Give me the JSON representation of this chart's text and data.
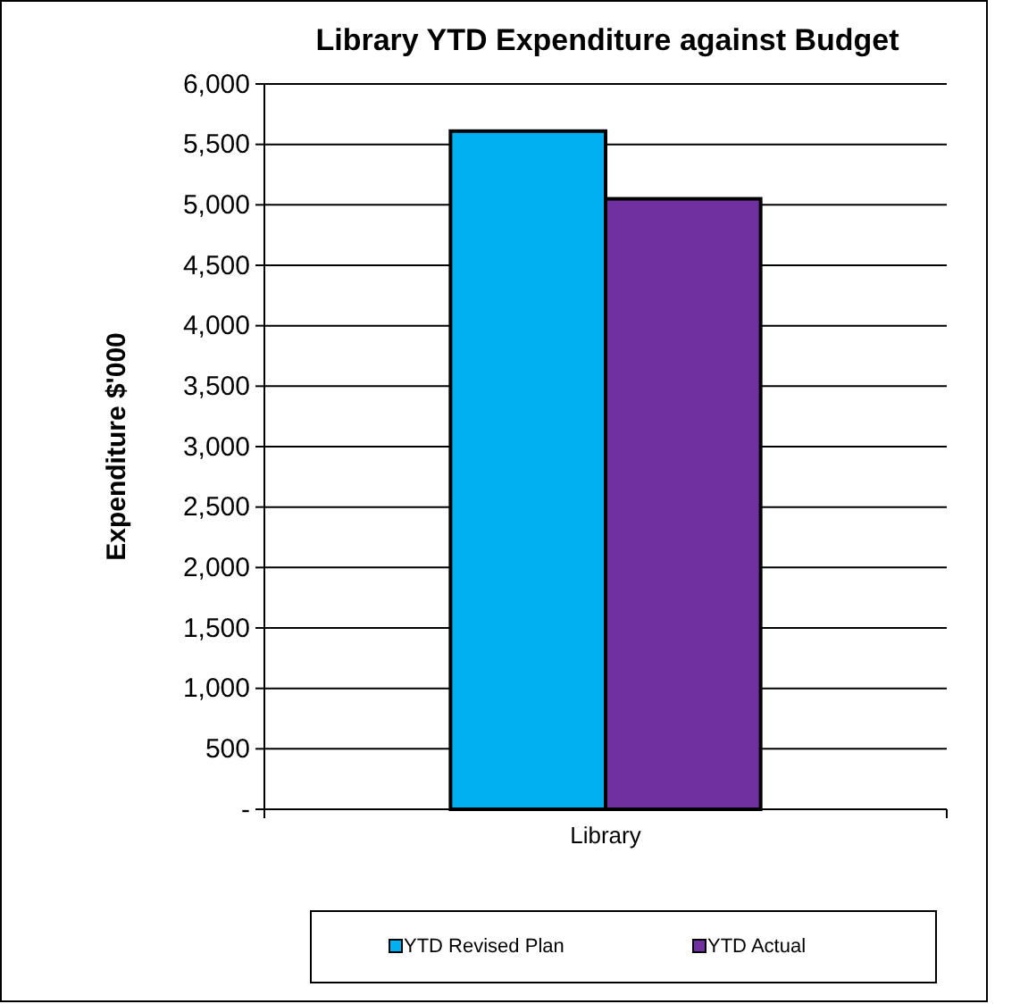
{
  "chart_data": {
    "type": "bar",
    "title": "Library YTD Expenditure against Budget",
    "ylabel": "Expenditure $'000",
    "categories": [
      "Library"
    ],
    "series": [
      {
        "name": "YTD Revised Plan",
        "color": "#00b0f0",
        "values": [
          5610
        ]
      },
      {
        "name": "YTD Actual",
        "color": "#7030a0",
        "values": [
          5050
        ]
      }
    ],
    "ylim": [
      0,
      6000
    ],
    "yticks": [
      {
        "value": 0,
        "label": "-"
      },
      {
        "value": 500,
        "label": "500"
      },
      {
        "value": 1000,
        "label": "1,000"
      },
      {
        "value": 1500,
        "label": "1,500"
      },
      {
        "value": 2000,
        "label": "2,000"
      },
      {
        "value": 2500,
        "label": "2,500"
      },
      {
        "value": 3000,
        "label": "3,000"
      },
      {
        "value": 3500,
        "label": "3,500"
      },
      {
        "value": 4000,
        "label": "4,000"
      },
      {
        "value": 4500,
        "label": "4,500"
      },
      {
        "value": 5000,
        "label": "5,000"
      },
      {
        "value": 5500,
        "label": "5,500"
      },
      {
        "value": 6000,
        "label": "6,000"
      }
    ],
    "grid": "y",
    "legend": "bottom"
  }
}
